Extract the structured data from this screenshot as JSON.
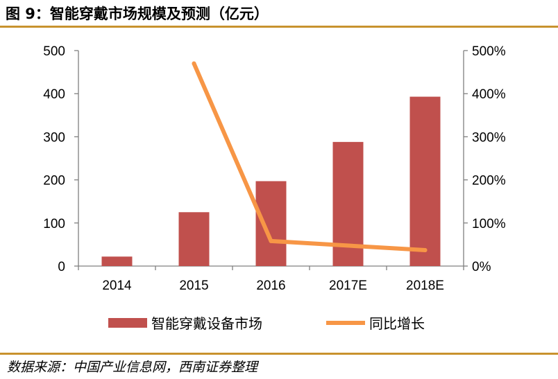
{
  "figure": {
    "title": "图 9：智能穿戴市场规模及预测（亿元）",
    "source": "数据来源：中国产业信息网，西南证券整理"
  },
  "colors": {
    "bar": "#c0504d",
    "line": "#f79646",
    "rule": "#c8922e",
    "axis": "#7f7f7f"
  },
  "chart_data": {
    "type": "bar",
    "categories": [
      "2014",
      "2015",
      "2016",
      "2017E",
      "2018E"
    ],
    "series": [
      {
        "name": "智能穿戴设备市场",
        "type": "bar",
        "axis": "left",
        "values": [
          22,
          125,
          197,
          288,
          393
        ]
      },
      {
        "name": "同比增长",
        "type": "line",
        "axis": "right",
        "values": [
          null,
          470,
          58,
          null,
          37
        ]
      }
    ],
    "y_left": {
      "min": 0,
      "max": 500,
      "ticks": [
        "0",
        "100",
        "200",
        "300",
        "400",
        "500"
      ]
    },
    "y_right": {
      "min": 0,
      "max": 500,
      "ticks": [
        "0%",
        "100%",
        "200%",
        "300%",
        "400%",
        "500%"
      ]
    },
    "legend_position": "bottom",
    "grid": false
  }
}
